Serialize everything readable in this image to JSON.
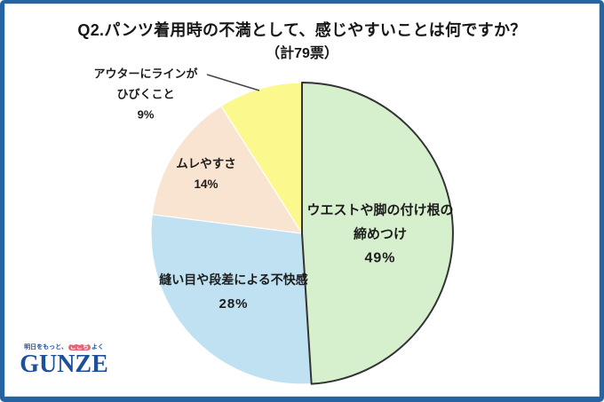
{
  "window": {
    "background": "#ffffff",
    "frame_color": "#2663a3"
  },
  "title": {
    "line1": "Q2.パンツ着用時の不満として、感じやすいことは何ですか？",
    "line2": "（計79票）"
  },
  "chart_data": {
    "type": "pie",
    "title": "Q2.パンツ着用時の不満として、感じやすいことは何ですか？",
    "subtitle": "（計79票）",
    "total_votes": 79,
    "start_angle_deg": 0,
    "direction": "clockwise",
    "outline_color": "#333333",
    "slices": [
      {
        "key": "waist-tightness",
        "label": "ウエストや脚の付け根の締めつけ",
        "percent": 49,
        "color": "#d6efcd",
        "outlined": true
      },
      {
        "key": "seam-discomfort",
        "label": "縫い目や段差による不快感",
        "percent": 28,
        "color": "#bfe1f1",
        "outlined": false
      },
      {
        "key": "stuffiness",
        "label": "ムレやすさ",
        "percent": 14,
        "color": "#f9e4d2",
        "outlined": false
      },
      {
        "key": "outer-line-shows",
        "label": "アウターにラインがひびくこと",
        "percent": 9,
        "color": "#fbf98e",
        "outlined": false
      }
    ]
  },
  "labels": {
    "slice1": {
      "l1": "ウエストや脚の付け根の",
      "l2": "締めつけ",
      "l3": "49%"
    },
    "slice2": {
      "l1": "縫い目や段差による不快感",
      "l2": "28%"
    },
    "slice3": {
      "l1": "ムレやすさ",
      "l2": "14%"
    },
    "slice4": {
      "l1": "アウターにラインが",
      "l2": "ひびくこと",
      "l3": "9%"
    }
  },
  "logo": {
    "tagline_pre": "明日をもっと、",
    "tagline_badge": "ここち",
    "tagline_post": "よく",
    "brand": "GUNZE",
    "brand_color": "#1d4f9b",
    "badge_color": "#e8657a"
  }
}
